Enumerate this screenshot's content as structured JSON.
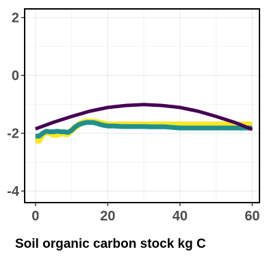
{
  "chart_data": {
    "type": "line",
    "title": "",
    "xlabel": "Soil organic carbon stock kg C",
    "ylabel": "",
    "xlim": [
      -3,
      62
    ],
    "ylim": [
      -4.4,
      2.3
    ],
    "x_ticks": [
      0,
      20,
      40,
      60
    ],
    "y_ticks": [
      2,
      0,
      -2,
      -4
    ],
    "grid": true,
    "legend": "none",
    "series": [
      {
        "color": "#fde725",
        "x": [
          0,
          1,
          2,
          3,
          4,
          5,
          6,
          7,
          8,
          9,
          10,
          11,
          12,
          13,
          14,
          15,
          16,
          17,
          18,
          19,
          20,
          21,
          22,
          23,
          24,
          25,
          26,
          28,
          30,
          32,
          34,
          36,
          38,
          40,
          42,
          44,
          46,
          48,
          50,
          52,
          54,
          56,
          58,
          60
        ],
        "y": [
          -2.25,
          -2.25,
          -2.05,
          -1.95,
          -2.0,
          -2.05,
          -2.05,
          -2.0,
          -2.02,
          -2.02,
          -1.9,
          -1.8,
          -1.7,
          -1.63,
          -1.6,
          -1.6,
          -1.6,
          -1.62,
          -1.65,
          -1.67,
          -1.7,
          -1.7,
          -1.7,
          -1.7,
          -1.7,
          -1.7,
          -1.7,
          -1.7,
          -1.7,
          -1.7,
          -1.7,
          -1.7,
          -1.7,
          -1.7,
          -1.7,
          -1.7,
          -1.7,
          -1.7,
          -1.7,
          -1.7,
          -1.7,
          -1.7,
          -1.7,
          -1.7
        ]
      },
      {
        "color": "#21908c",
        "x": [
          0,
          1,
          2,
          3,
          4,
          5,
          6,
          7,
          8,
          9,
          10,
          11,
          12,
          13,
          14,
          15,
          16,
          17,
          18,
          19,
          20,
          21,
          22,
          23,
          24,
          25,
          26,
          28,
          30,
          32,
          34,
          36,
          38,
          40,
          42,
          44,
          46,
          48,
          50,
          52,
          54,
          56,
          58,
          60
        ],
        "y": [
          -2.1,
          -2.1,
          -2.0,
          -1.93,
          -1.95,
          -1.95,
          -1.93,
          -1.95,
          -1.95,
          -1.97,
          -1.9,
          -1.78,
          -1.7,
          -1.66,
          -1.63,
          -1.63,
          -1.63,
          -1.66,
          -1.7,
          -1.73,
          -1.75,
          -1.75,
          -1.75,
          -1.76,
          -1.77,
          -1.77,
          -1.77,
          -1.77,
          -1.77,
          -1.78,
          -1.78,
          -1.78,
          -1.8,
          -1.82,
          -1.82,
          -1.82,
          -1.82,
          -1.82,
          -1.82,
          -1.82,
          -1.82,
          -1.82,
          -1.82,
          -1.82
        ]
      },
      {
        "color": "#440154",
        "x": [
          0,
          5,
          10,
          15,
          20,
          25,
          30,
          35,
          40,
          45,
          50,
          55,
          60
        ],
        "y": [
          -1.85,
          -1.62,
          -1.42,
          -1.24,
          -1.11,
          -1.04,
          -1.01,
          -1.04,
          -1.11,
          -1.24,
          -1.42,
          -1.62,
          -1.87
        ]
      }
    ]
  }
}
